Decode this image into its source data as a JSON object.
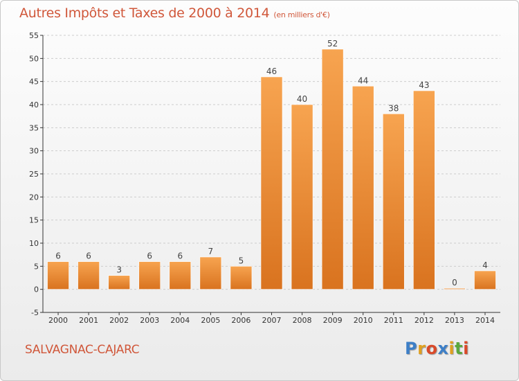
{
  "header": {
    "title": "Autres Impôts et Taxes de 2000 à 2014",
    "subtitle": "(en milliers d'€)"
  },
  "footer": {
    "commune": "SALVAGNAC-CAJARC",
    "brand": {
      "text": "Proxiti",
      "letters": [
        "P",
        "r",
        "o",
        "x",
        "i",
        "t",
        "i"
      ],
      "colors": [
        "#3d7fc7",
        "#e0a020",
        "#d94a2a",
        "#3d7fc7",
        "#e0a020",
        "#5aa83c",
        "#d94a2a"
      ]
    }
  },
  "colors": {
    "bar_light": "#f7a450",
    "bar_dark": "#d9731f",
    "text": "#d0573a",
    "axis": "#333333",
    "grid": "#cccccc"
  },
  "chart_data": {
    "type": "bar",
    "title": "Autres Impôts et Taxes de 2000 à 2014",
    "subtitle": "(en milliers d'€)",
    "categories": [
      "2000",
      "2001",
      "2002",
      "2003",
      "2004",
      "2005",
      "2006",
      "2007",
      "2008",
      "2009",
      "2010",
      "2011",
      "2012",
      "2013",
      "2014"
    ],
    "values": [
      6,
      6,
      3,
      6,
      6,
      7,
      5,
      46,
      40,
      52,
      44,
      38,
      43,
      0,
      4
    ],
    "data_labels": [
      "6",
      "6",
      "3",
      "6",
      "6",
      "7",
      "5",
      "46",
      "40",
      "52",
      "44",
      "38",
      "43",
      "0",
      "4"
    ],
    "ylim": [
      -5,
      55
    ],
    "yticks": [
      -5,
      0,
      5,
      10,
      15,
      20,
      25,
      30,
      35,
      40,
      45,
      50,
      55
    ],
    "ytick_labels": [
      "-5",
      "0",
      "5",
      "10",
      "15",
      "20",
      "25",
      "30",
      "35",
      "40",
      "45",
      "50",
      "55"
    ],
    "grid": "horizontal dashed",
    "legend": "none",
    "xlabel": "",
    "ylabel": ""
  }
}
